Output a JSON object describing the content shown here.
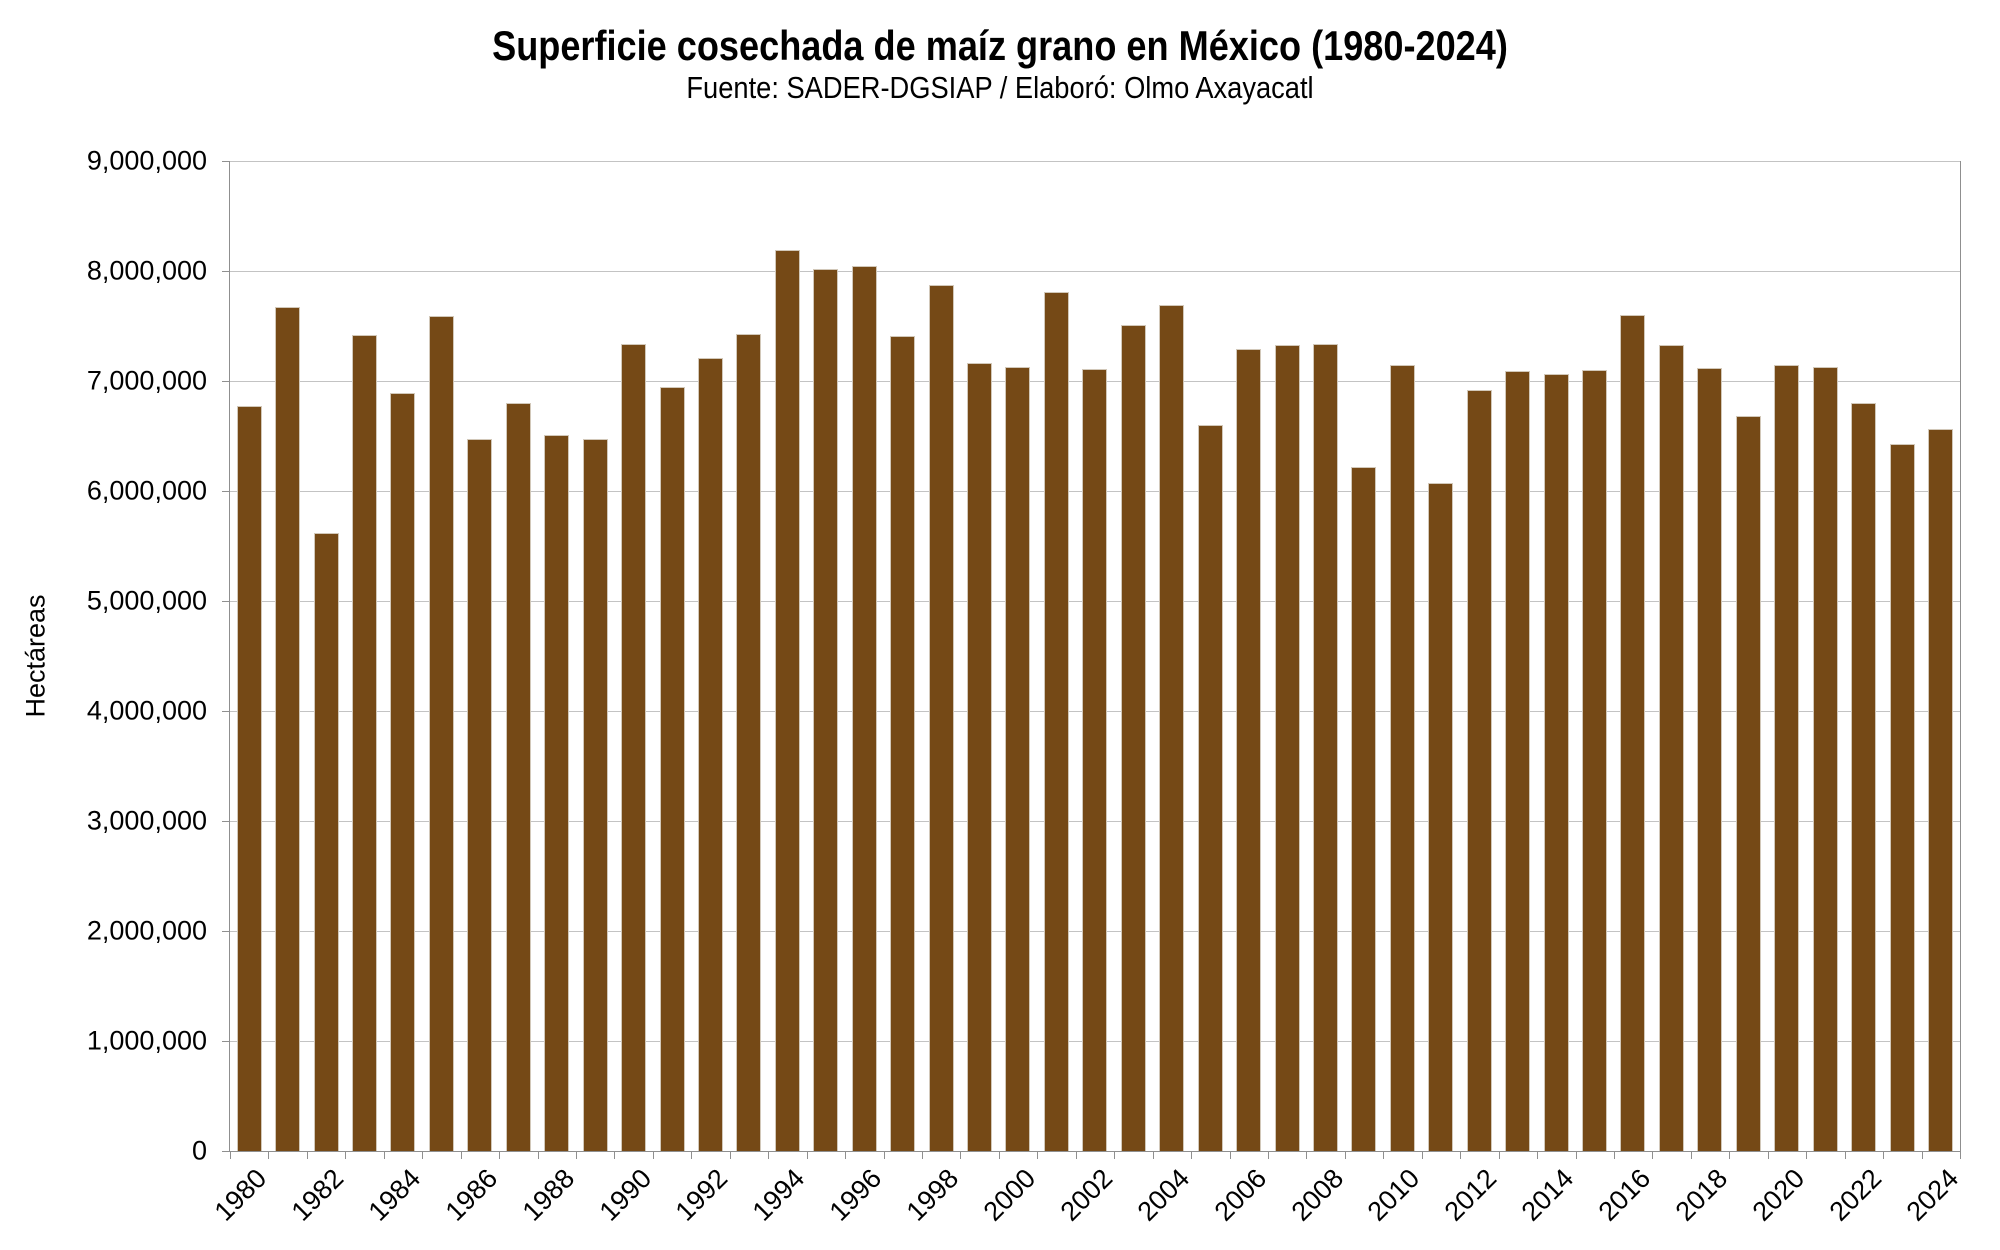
{
  "header": {
    "title": "Superficie cosechada de maíz grano en México (1980-2024)",
    "subtitle": "Fuente: SADER-DGSIAP / Elaboró: Olmo Axayacatl"
  },
  "y_axis": {
    "label": "Hectáreas",
    "tick_labels": [
      "0",
      "1,000,000",
      "2,000,000",
      "3,000,000",
      "4,000,000",
      "5,000,000",
      "6,000,000",
      "7,000,000",
      "8,000,000",
      "9,000,000"
    ],
    "min": 0,
    "max": 9000000,
    "interval": 1000000
  },
  "x_axis": {
    "tick_labels": [
      "1980",
      "1982",
      "1984",
      "1986",
      "1988",
      "1990",
      "1992",
      "1994",
      "1996",
      "1998",
      "2000",
      "2002",
      "2004",
      "2006",
      "2008",
      "2010",
      "2012",
      "2014",
      "2016",
      "2018",
      "2020",
      "2022",
      "2024"
    ]
  },
  "chart_data": {
    "type": "bar",
    "title": "Superficie cosechada de maíz grano en México (1980-2024)",
    "subtitle": "Fuente: SADER-DGSIAP / Elaboró: Olmo Axayacatl",
    "xlabel": "",
    "ylabel": "Hectáreas",
    "ylim": [
      0,
      9000000
    ],
    "grid": true,
    "legend": "none",
    "x": [
      1980,
      1981,
      1982,
      1983,
      1984,
      1985,
      1986,
      1987,
      1988,
      1989,
      1990,
      1991,
      1992,
      1993,
      1994,
      1995,
      1996,
      1997,
      1998,
      1999,
      2000,
      2001,
      2002,
      2003,
      2004,
      2005,
      2006,
      2007,
      2008,
      2009,
      2010,
      2011,
      2012,
      2013,
      2014,
      2015,
      2016,
      2017,
      2018,
      2019,
      2020,
      2021,
      2022,
      2023,
      2024
    ],
    "values": [
      6770000,
      7670000,
      5620000,
      7420000,
      6890000,
      7590000,
      6470000,
      6800000,
      6510000,
      6470000,
      7340000,
      6950000,
      7210000,
      7430000,
      8190000,
      8020000,
      8050000,
      7410000,
      7870000,
      7160000,
      7130000,
      7810000,
      7110000,
      7510000,
      7690000,
      6600000,
      7290000,
      7330000,
      7340000,
      6220000,
      7150000,
      6070000,
      6920000,
      7090000,
      7060000,
      7100000,
      7600000,
      7330000,
      7120000,
      6680000,
      7150000,
      7130000,
      6800000,
      6430000,
      6560000
    ]
  },
  "style": {
    "bar_color": "#754916",
    "bar_border_color": "#d2c8b9",
    "grid_color": "#c3c3c3",
    "axis_color": "#8f8f8f",
    "background": "#ffffff",
    "text_color": "#000000"
  }
}
